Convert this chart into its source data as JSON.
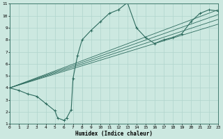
{
  "xlabel": "Humidex (Indice chaleur)",
  "xlim": [
    0,
    23
  ],
  "ylim": [
    1,
    11
  ],
  "xticks": [
    0,
    1,
    2,
    3,
    4,
    5,
    6,
    7,
    8,
    9,
    10,
    11,
    12,
    13,
    14,
    15,
    16,
    17,
    18,
    19,
    20,
    21,
    22,
    23
  ],
  "yticks": [
    1,
    2,
    3,
    4,
    5,
    6,
    7,
    8,
    9,
    10,
    11
  ],
  "bg_color": "#cce8e0",
  "line_color": "#2d6b5e",
  "grid_color": "#b0d4cc",
  "main_line_x": [
    0,
    1,
    2,
    3,
    4,
    5,
    5.3,
    6,
    6.3,
    6.8,
    7,
    7.5,
    8,
    9,
    10,
    11,
    12,
    13,
    14,
    15,
    16,
    17,
    18,
    19,
    20,
    21,
    22,
    23
  ],
  "main_line_y": [
    4.0,
    3.8,
    3.5,
    3.3,
    2.7,
    2.1,
    1.5,
    1.3,
    1.5,
    2.2,
    4.8,
    6.7,
    8.0,
    8.8,
    9.5,
    10.2,
    10.5,
    11.1,
    9.0,
    8.2,
    7.7,
    8.0,
    8.2,
    8.5,
    9.5,
    10.2,
    10.5,
    10.4
  ],
  "band_lines": [
    [
      [
        0,
        23
      ],
      [
        4.0,
        10.5
      ]
    ],
    [
      [
        0,
        23
      ],
      [
        4.0,
        10.1
      ]
    ],
    [
      [
        0,
        23
      ],
      [
        4.0,
        9.7
      ]
    ],
    [
      [
        0,
        23
      ],
      [
        4.0,
        9.3
      ]
    ]
  ]
}
